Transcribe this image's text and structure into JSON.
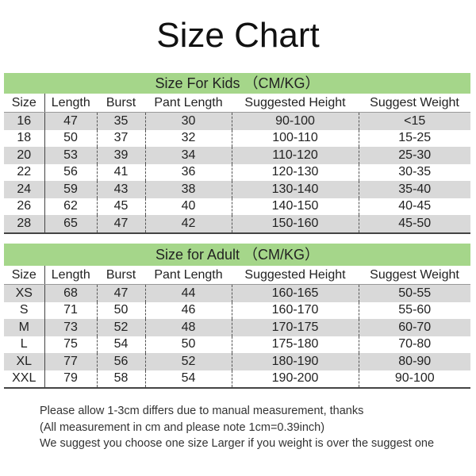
{
  "title": "Size Chart",
  "columns": [
    "Size",
    "Length",
    "Burst",
    "Pant Length",
    "Suggested Height",
    "Suggest Weight"
  ],
  "kids": {
    "heading": "Size For Kids （CM/KG）",
    "rows": [
      [
        "16",
        "47",
        "35",
        "30",
        "90-100",
        "<15"
      ],
      [
        "18",
        "50",
        "37",
        "32",
        "100-110",
        "15-25"
      ],
      [
        "20",
        "53",
        "39",
        "34",
        "110-120",
        "25-30"
      ],
      [
        "22",
        "56",
        "41",
        "36",
        "120-130",
        "30-35"
      ],
      [
        "24",
        "59",
        "43",
        "38",
        "130-140",
        "35-40"
      ],
      [
        "26",
        "62",
        "45",
        "40",
        "140-150",
        "40-45"
      ],
      [
        "28",
        "65",
        "47",
        "42",
        "150-160",
        "45-50"
      ]
    ]
  },
  "adult": {
    "heading": "Size for Adult （CM/KG）",
    "rows": [
      [
        "XS",
        "68",
        "47",
        "44",
        "160-165",
        "50-55"
      ],
      [
        "S",
        "71",
        "50",
        "46",
        "160-170",
        "55-60"
      ],
      [
        "M",
        "73",
        "52",
        "48",
        "170-175",
        "60-70"
      ],
      [
        "L",
        "75",
        "54",
        "50",
        "175-180",
        "70-80"
      ],
      [
        "XL",
        "77",
        "56",
        "52",
        "180-190",
        "80-90"
      ],
      [
        "XXL",
        "79",
        "58",
        "54",
        "190-200",
        "90-100"
      ]
    ]
  },
  "notes": [
    "Please allow 1-3cm differs due to manual measurement, thanks",
    "(All measurement in cm and please note 1cm=0.39inch)",
    "We suggest you choose one size Larger if you weight is over the suggest one"
  ],
  "colors": {
    "header_band": "#a5d68a",
    "row_stripe": "#d9d9d9"
  }
}
